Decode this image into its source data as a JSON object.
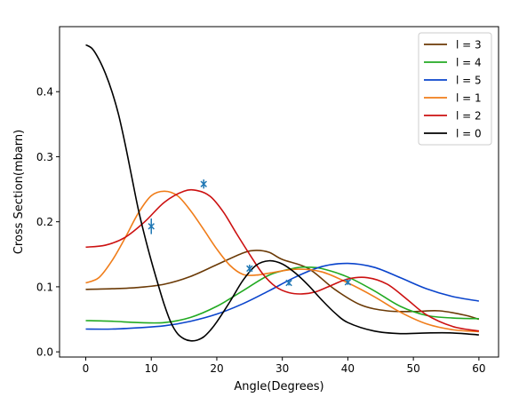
{
  "chart_data": {
    "type": "line",
    "title": "",
    "xlabel": "Angle(Degrees)",
    "ylabel": "Cross Section(mbarn)",
    "xlim": [
      -4,
      63
    ],
    "ylim": [
      -0.008,
      0.5
    ],
    "x_ticks": [
      0,
      10,
      20,
      30,
      40,
      50,
      60
    ],
    "y_ticks": [
      0.0,
      0.1,
      0.2,
      0.3,
      0.4
    ],
    "x_tick_labels": [
      "0",
      "10",
      "20",
      "30",
      "40",
      "50",
      "60"
    ],
    "y_tick_labels": [
      "0.0",
      "0.1",
      "0.2",
      "0.3",
      "0.4"
    ],
    "grid": false,
    "legend_position": "top-right",
    "series": [
      {
        "name": "l = 3",
        "color": "#6b3a06",
        "x": [
          0,
          4,
          8,
          12,
          16,
          20,
          24,
          26,
          28,
          30,
          34,
          38,
          42,
          46,
          50,
          54,
          58,
          60
        ],
        "y": [
          0.096,
          0.097,
          0.099,
          0.104,
          0.116,
          0.134,
          0.152,
          0.156,
          0.153,
          0.142,
          0.128,
          0.096,
          0.072,
          0.063,
          0.062,
          0.063,
          0.056,
          0.05
        ]
      },
      {
        "name": "l = 4",
        "color": "#22aa22",
        "x": [
          0,
          4,
          8,
          12,
          16,
          20,
          24,
          28,
          32,
          34,
          36,
          40,
          44,
          48,
          52,
          56,
          60
        ],
        "y": [
          0.048,
          0.047,
          0.045,
          0.045,
          0.053,
          0.07,
          0.094,
          0.118,
          0.129,
          0.13,
          0.128,
          0.115,
          0.094,
          0.07,
          0.056,
          0.052,
          0.051
        ]
      },
      {
        "name": "l = 5",
        "color": "#0a44cc",
        "x": [
          0,
          4,
          8,
          12,
          16,
          20,
          24,
          28,
          32,
          36,
          40,
          44,
          48,
          52,
          56,
          60
        ],
        "y": [
          0.035,
          0.035,
          0.037,
          0.04,
          0.047,
          0.058,
          0.074,
          0.094,
          0.115,
          0.131,
          0.136,
          0.13,
          0.114,
          0.097,
          0.085,
          0.078
        ]
      },
      {
        "name": "l = 1",
        "color": "#f07d1a",
        "x": [
          0,
          2,
          4,
          6,
          8,
          10,
          12,
          14,
          16,
          18,
          20,
          22,
          24,
          26,
          28,
          32,
          36,
          40,
          44,
          48,
          52,
          56,
          60
        ],
        "y": [
          0.106,
          0.114,
          0.14,
          0.175,
          0.213,
          0.24,
          0.247,
          0.24,
          0.217,
          0.188,
          0.158,
          0.133,
          0.119,
          0.118,
          0.121,
          0.127,
          0.123,
          0.106,
          0.085,
          0.061,
          0.043,
          0.034,
          0.031
        ]
      },
      {
        "name": "l = 2",
        "color": "#cc1111",
        "x": [
          0,
          3,
          6,
          9,
          12,
          15,
          17,
          19,
          21,
          23,
          25,
          27,
          29,
          31,
          33,
          35,
          37,
          40,
          43,
          46,
          49,
          52,
          56,
          60
        ],
        "y": [
          0.161,
          0.164,
          0.176,
          0.2,
          0.23,
          0.247,
          0.248,
          0.239,
          0.215,
          0.182,
          0.15,
          0.12,
          0.1,
          0.091,
          0.089,
          0.092,
          0.1,
          0.112,
          0.114,
          0.104,
          0.081,
          0.057,
          0.039,
          0.032
        ]
      },
      {
        "name": "l = 0",
        "color": "#000000",
        "x": [
          0,
          1,
          2,
          3,
          4,
          5,
          6,
          7,
          8,
          9,
          10,
          11,
          12,
          13,
          14,
          15,
          16,
          17,
          18,
          19,
          20,
          22,
          24,
          26,
          28,
          30,
          32,
          34,
          36,
          38,
          40,
          44,
          48,
          52,
          56,
          60
        ],
        "y": [
          0.472,
          0.466,
          0.45,
          0.428,
          0.4,
          0.365,
          0.32,
          0.27,
          0.22,
          0.178,
          0.14,
          0.105,
          0.072,
          0.045,
          0.028,
          0.02,
          0.017,
          0.018,
          0.023,
          0.033,
          0.046,
          0.077,
          0.11,
          0.133,
          0.14,
          0.135,
          0.121,
          0.102,
          0.08,
          0.06,
          0.045,
          0.032,
          0.028,
          0.029,
          0.029,
          0.026
        ]
      }
    ],
    "data_points": {
      "color": "#1f77b4",
      "marker": "x",
      "x": [
        10,
        18,
        25,
        31,
        40
      ],
      "y": [
        0.193,
        0.258,
        0.128,
        0.106,
        0.107
      ],
      "yerr": [
        0.012,
        0.007,
        0.006,
        0.004,
        0.004
      ]
    }
  }
}
